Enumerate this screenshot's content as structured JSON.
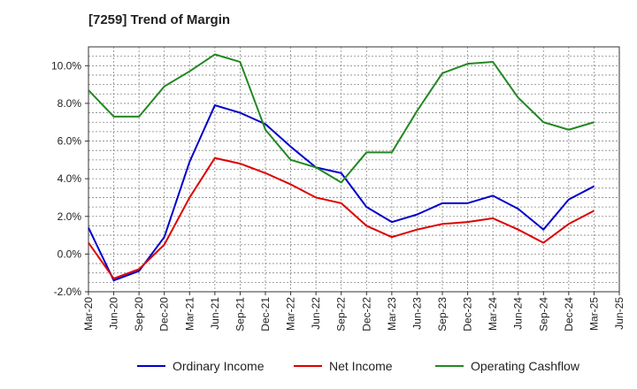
{
  "chart_data": {
    "type": "line",
    "title": "[7259]  Trend of Margin",
    "xlabel": "",
    "ylabel": "",
    "x": [
      "Mar-20",
      "Jun-20",
      "Sep-20",
      "Dec-20",
      "Mar-21",
      "Jun-21",
      "Sep-21",
      "Dec-21",
      "Mar-22",
      "Jun-22",
      "Sep-22",
      "Dec-22",
      "Mar-23",
      "Jun-23",
      "Sep-23",
      "Dec-23",
      "Mar-24",
      "Jun-24",
      "Sep-24",
      "Dec-24",
      "Mar-25",
      "Jun-25"
    ],
    "ylim": [
      -2.0,
      11.0
    ],
    "yticks": [
      -2.0,
      0.0,
      2.0,
      4.0,
      6.0,
      8.0,
      10.0
    ],
    "ytick_labels": [
      "-2.0%",
      "0.0%",
      "2.0%",
      "4.0%",
      "6.0%",
      "8.0%",
      "10.0%"
    ],
    "grid": true,
    "legend_position": "bottom",
    "series": [
      {
        "name": "Ordinary Income",
        "color": "#0000cc",
        "values": [
          1.4,
          -1.4,
          -0.9,
          0.9,
          4.9,
          7.9,
          7.5,
          6.9,
          5.7,
          4.6,
          4.3,
          2.5,
          1.7,
          2.1,
          2.7,
          2.7,
          3.1,
          2.4,
          1.3,
          2.9,
          3.6,
          null
        ]
      },
      {
        "name": "Net Income",
        "color": "#dd0000",
        "values": [
          0.6,
          -1.3,
          -0.8,
          0.5,
          3.0,
          5.1,
          4.8,
          4.3,
          3.7,
          3.0,
          2.7,
          1.5,
          0.9,
          1.3,
          1.6,
          1.7,
          1.9,
          1.3,
          0.6,
          1.6,
          2.3,
          null
        ]
      },
      {
        "name": "Operating Cashflow",
        "color": "#228822",
        "values": [
          8.7,
          7.3,
          7.3,
          8.9,
          9.7,
          10.6,
          10.2,
          6.6,
          5.0,
          4.6,
          3.8,
          5.4,
          5.4,
          7.6,
          9.6,
          10.1,
          10.2,
          8.3,
          7.0,
          6.6,
          7.0,
          null
        ]
      }
    ]
  }
}
